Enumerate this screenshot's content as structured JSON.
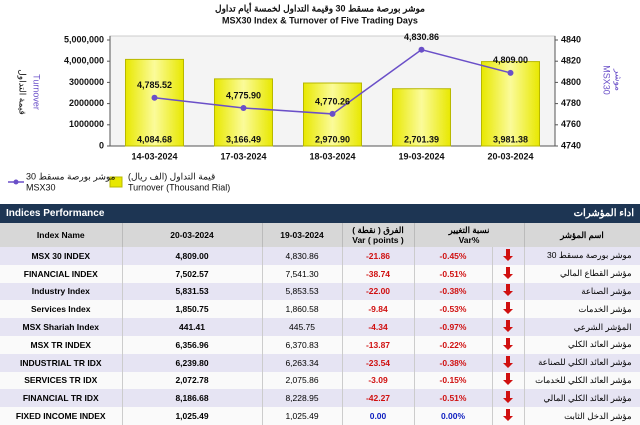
{
  "chart_data": {
    "type": "combo",
    "title": "موشر بورصة مسقط 30 وقيمة التداول لخمسة أيام تداول",
    "subtitle": "MSX30 Index & Turnover of Five Trading Days",
    "y_label": "Turnover",
    "y_label_ar": "قيمة التداول",
    "y2_label": "MSX30",
    "y2_label_ar": "موشر",
    "categories": [
      "14-03-2024",
      "17-03-2024",
      "18-03-2024",
      "19-03-2024",
      "20-03-2024"
    ],
    "series": [
      {
        "type": "bar",
        "name": "Turnover (Thousand Rial)",
        "name_ar": "قيمة التداول (الف ريال)",
        "color": "#e8e800",
        "axis": "y",
        "values": [
          4084680,
          3166490,
          2970900,
          2701390,
          3981380
        ],
        "value_labels": [
          "4,084.68",
          "3,166.49",
          "2,970.90",
          "2,701.39",
          "3,981.38"
        ]
      },
      {
        "type": "line",
        "name": "MSX30",
        "name_ar": "موشر بورصة مسقط 30",
        "color": "#6a4fc8",
        "axis": "y2",
        "values": [
          4785.52,
          4775.9,
          4770.26,
          4830.86,
          4809.0
        ],
        "value_labels": [
          "4,785.52",
          "4,775.90",
          "4,770.26",
          "4,830.86",
          "4,809.00"
        ]
      }
    ],
    "ylim": [
      0,
      5000000
    ],
    "yticks": [
      0,
      1000000,
      2000000,
      3000000,
      {
        "value": 4000000,
        "label": "4,000,000"
      },
      {
        "value": 5000000,
        "label": "5,000,000"
      }
    ],
    "y2lim": [
      4740,
      4840
    ],
    "y2ticks": [
      4740,
      4760,
      4780,
      4800,
      4820,
      4840
    ],
    "grid": false
  },
  "table": {
    "title": "Indices Performance",
    "title_ar": "اداء المؤشرات",
    "columns": [
      [
        "Index Name"
      ],
      [
        "20-03-2024"
      ],
      [
        "19-03-2024"
      ],
      [
        "الفرق ( نقطة )",
        "Var ( points )"
      ],
      [
        "نسبة التغيير",
        "Var%"
      ],
      [
        "اسم المؤشر"
      ]
    ],
    "rows": [
      [
        "MSX 30 INDEX",
        "4,809.00",
        "4,830.86",
        "-21.86",
        "-0.45%",
        "موشر بورصة مسقط 30"
      ],
      [
        "FINANCIAL INDEX",
        "7,502.57",
        "7,541.30",
        "-38.74",
        "-0.51%",
        "مؤشر القطاع المالي"
      ],
      [
        "Industry Index",
        "5,831.53",
        "5,853.53",
        "-22.00",
        "-0.38%",
        "مؤشر الصناعة"
      ],
      [
        "Services Index",
        "1,850.75",
        "1,860.58",
        "-9.84",
        "-0.53%",
        "مؤشر الخدمات"
      ],
      [
        "MSX Shariah Index",
        "441.41",
        "445.75",
        "-4.34",
        "-0.97%",
        "المؤشر الشرعي"
      ],
      [
        "MSX TR INDEX",
        "6,356.96",
        "6,370.83",
        "-13.87",
        "-0.22%",
        "مؤشر العائد الكلي"
      ],
      [
        "INDUSTRIAL TR IDX",
        "6,239.80",
        "6,263.34",
        "-23.54",
        "-0.38%",
        "مؤشر العائد الكلي للصناعة"
      ],
      [
        "SERVICES TR IDX",
        "2,072.78",
        "2,075.86",
        "-3.09",
        "-0.15%",
        "مؤشر العائد الكلي للخدمات"
      ],
      [
        "FINANCIAL TR IDX",
        "8,186.68",
        "8,228.95",
        "-42.27",
        "-0.51%",
        "مؤشر العائد الكلي المالي"
      ],
      [
        "FIXED INCOME INDEX",
        "1,025.49",
        "1,025.49",
        "0.00",
        "0.00%",
        "مؤشر الدخل الثابت"
      ]
    ]
  }
}
